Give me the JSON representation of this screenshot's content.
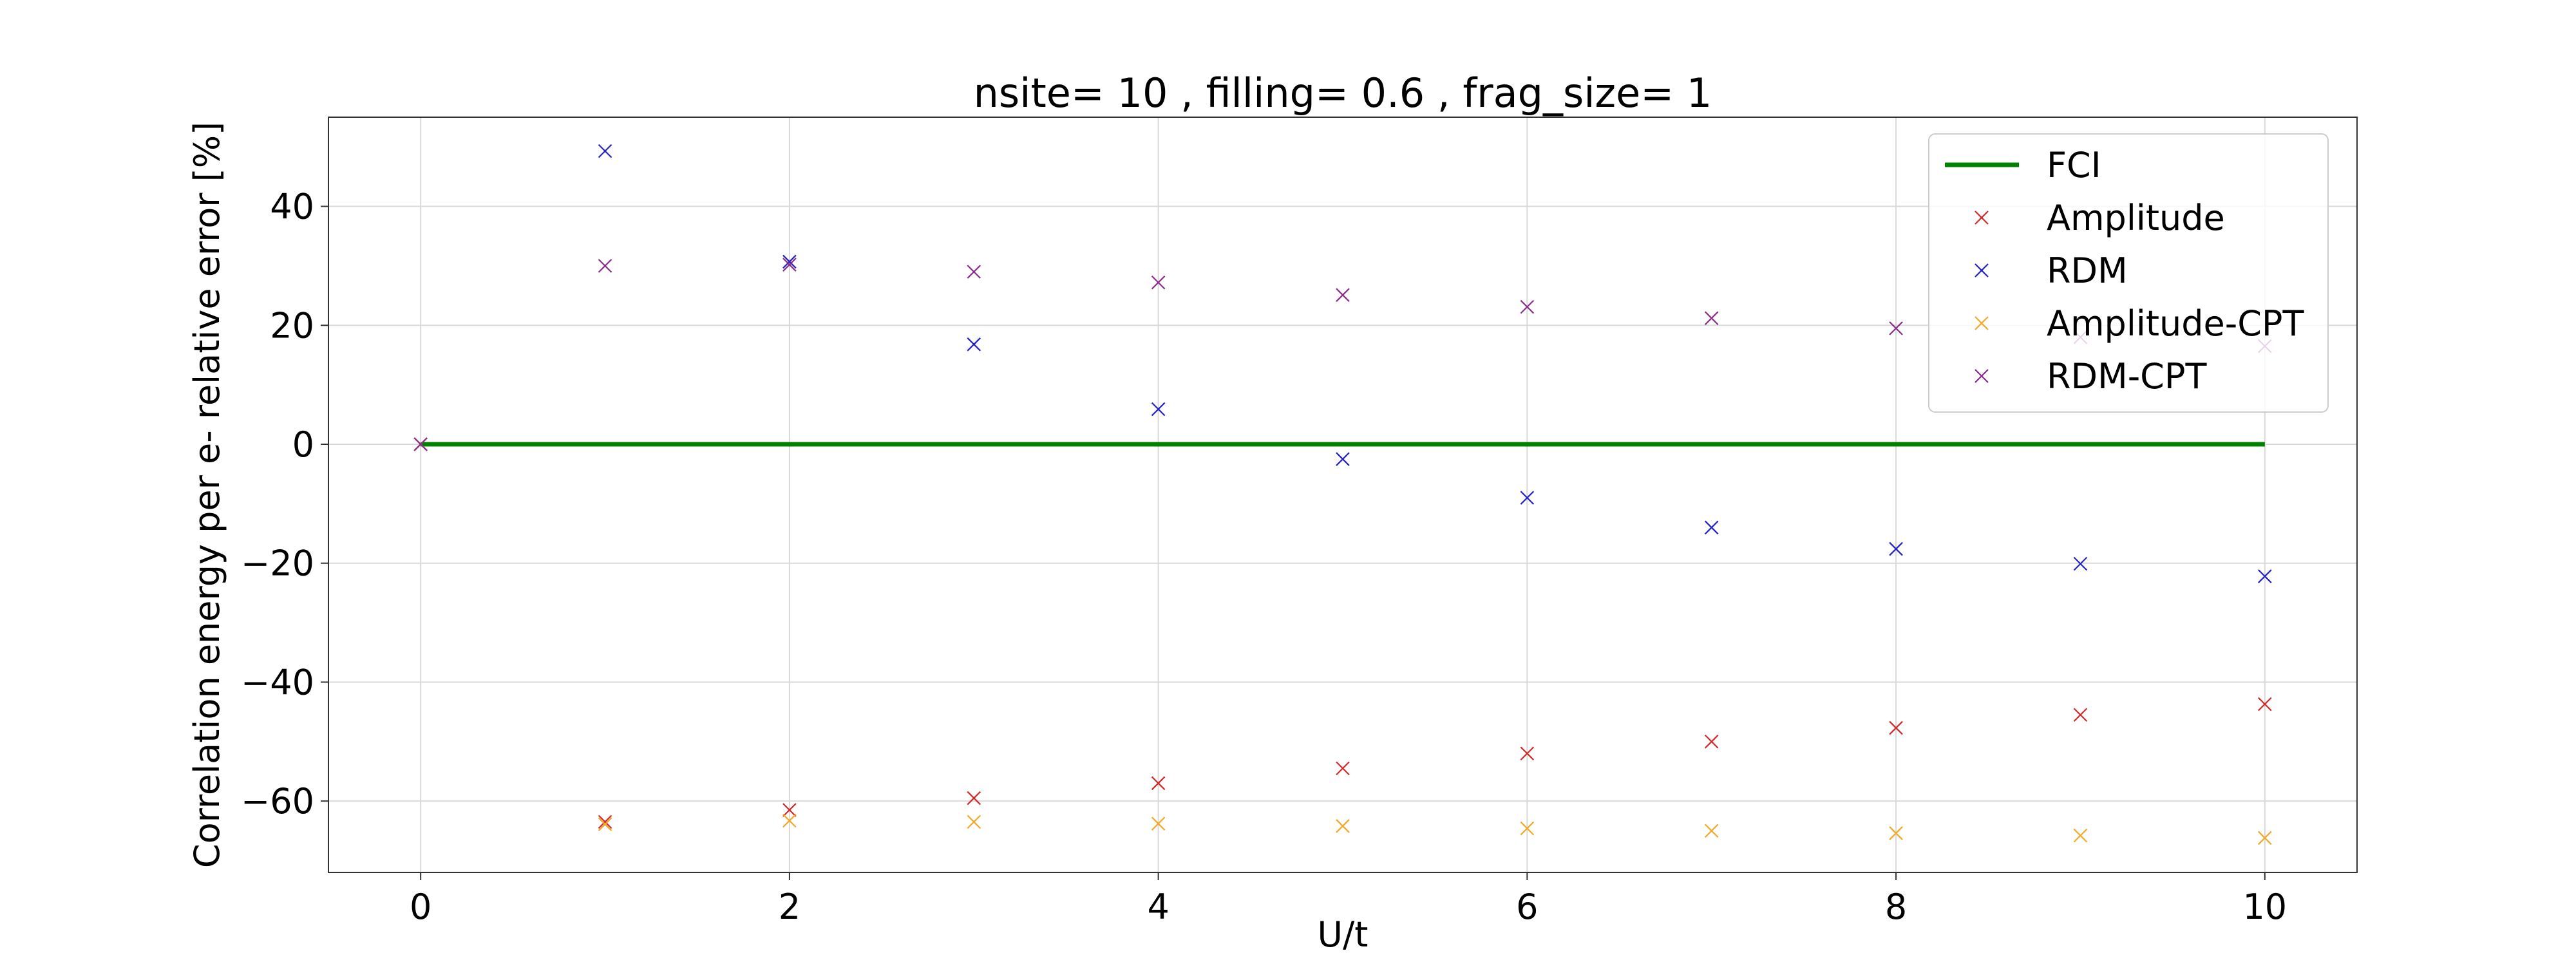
{
  "chart_data": {
    "type": "scatter",
    "title": "nsite= 10 , filling= 0.6 , frag_size= 1",
    "xlabel": "U/t",
    "ylabel": "Correlation energy per e- relative error [%]",
    "xlim": [
      -0.5,
      10.5
    ],
    "ylim": [
      -72,
      55
    ],
    "xticks": [
      0,
      2,
      4,
      6,
      8,
      10
    ],
    "xtick_labels": [
      "0",
      "2",
      "4",
      "6",
      "8",
      "10"
    ],
    "yticks": [
      -60,
      -40,
      -20,
      0,
      20,
      40
    ],
    "ytick_labels": [
      "−60",
      "−40",
      "−20",
      "0",
      "20",
      "40"
    ],
    "grid": true,
    "legend_position": "top-right",
    "series": [
      {
        "name": "FCI",
        "kind": "line",
        "color": "#008000",
        "x": [
          0,
          1,
          2,
          3,
          4,
          5,
          6,
          7,
          8,
          9,
          10
        ],
        "y": [
          0,
          0,
          0,
          0,
          0,
          0,
          0,
          0,
          0,
          0,
          0
        ]
      },
      {
        "name": "Amplitude",
        "kind": "marker",
        "color": "#d62728",
        "x": [
          0,
          1,
          2,
          3,
          4,
          5,
          6,
          7,
          8,
          9,
          10
        ],
        "y": [
          0,
          -63.5,
          -61.5,
          -59.5,
          -57.0,
          -54.5,
          -52.0,
          -50.0,
          -47.7,
          -45.5,
          -43.7
        ]
      },
      {
        "name": "RDM",
        "kind": "marker",
        "color": "#2020cc",
        "x": [
          0,
          1,
          2,
          3,
          4,
          5,
          6,
          7,
          8,
          9,
          10
        ],
        "y": [
          0,
          49.3,
          30.7,
          16.8,
          5.9,
          -2.5,
          -9.0,
          -14.0,
          -17.6,
          -20.1,
          -22.2
        ]
      },
      {
        "name": "Amplitude-CPT",
        "kind": "marker",
        "color": "#f5a623",
        "x": [
          0,
          1,
          2,
          3,
          4,
          5,
          6,
          7,
          8,
          9,
          10
        ],
        "y": [
          0,
          -63.9,
          -63.3,
          -63.5,
          -63.8,
          -64.2,
          -64.6,
          -65.0,
          -65.4,
          -65.8,
          -66.2
        ]
      },
      {
        "name": "RDM-CPT",
        "kind": "marker",
        "color": "#8b2c8b",
        "x": [
          0,
          1,
          2,
          3,
          4,
          5,
          6,
          7,
          8,
          9,
          10
        ],
        "y": [
          0,
          30.0,
          30.2,
          29.0,
          27.2,
          25.1,
          23.1,
          21.2,
          19.5,
          18.0,
          16.5
        ]
      }
    ]
  }
}
